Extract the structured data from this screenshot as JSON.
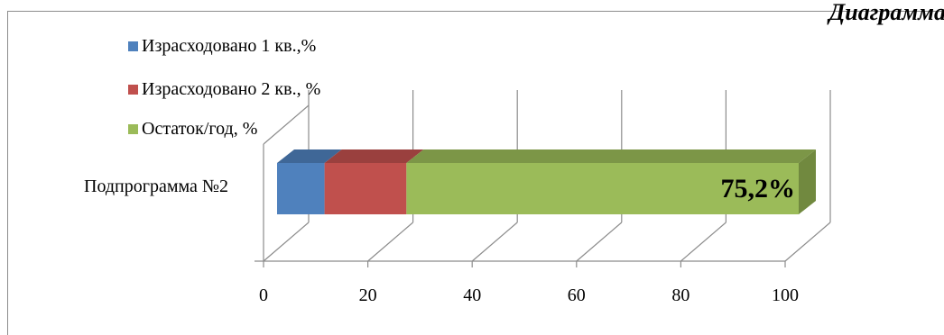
{
  "caption": "Диаграмма",
  "chart_data": {
    "type": "bar",
    "orientation": "horizontal",
    "stacked": true,
    "three_d": true,
    "categories": [
      "Подпрограмма №2"
    ],
    "series": [
      {
        "name": "Израсходовано 1 кв.,%",
        "values": [
          9.1
        ],
        "color": "#4f81bd",
        "top_color": "#3f6797",
        "side_color": "#385d8a"
      },
      {
        "name": "Израсходовано 2 кв., %",
        "values": [
          15.7
        ],
        "color": "#c0504d",
        "top_color": "#9a403e",
        "side_color": "#8c3a38"
      },
      {
        "name": "Остаток/год, %",
        "values": [
          75.2
        ],
        "color": "#9bbb59",
        "top_color": "#7c9647",
        "side_color": "#71893f"
      }
    ],
    "data_labels": [
      {
        "series": 2,
        "category": 0,
        "text": "75,2%"
      }
    ],
    "x_ticks": [
      "0",
      "20",
      "40",
      "60",
      "80",
      "100"
    ],
    "xlim": [
      0,
      100
    ],
    "grid": true,
    "legend_position": "top-left"
  }
}
